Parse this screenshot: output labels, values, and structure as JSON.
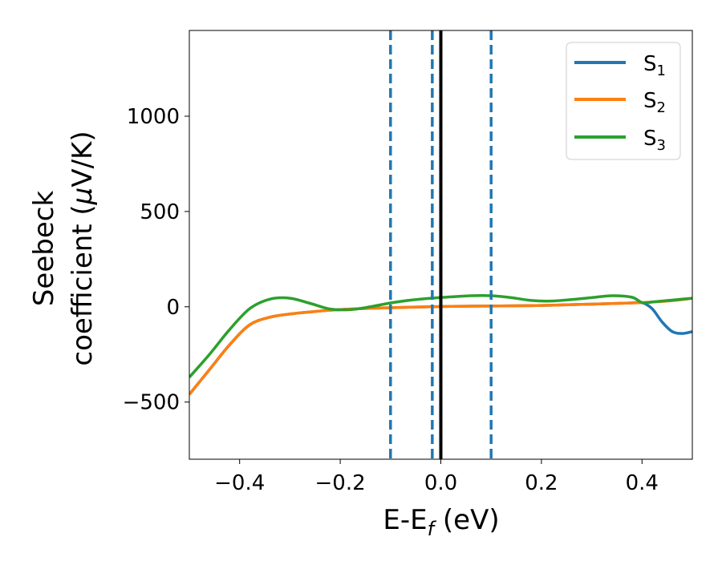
{
  "chart_data": {
    "type": "line",
    "title": "",
    "xlabel": "E-E",
    "xlabel_sub": "f",
    "xlabel_unit": " (eV)",
    "ylabel_line1": "Seebeck",
    "ylabel_line2": "coefficient  (",
    "ylabel_mu": "μ",
    "ylabel_unit": "V/K)",
    "xlim": [
      -0.5,
      0.5
    ],
    "ylim": [
      -800,
      1450
    ],
    "x_ticks": [
      -0.4,
      -0.2,
      0.0,
      0.2,
      0.4
    ],
    "x_tick_labels": [
      "−0.4",
      "−0.2",
      "0.0",
      "0.2",
      "0.4"
    ],
    "y_ticks": [
      -500,
      0,
      500,
      1000
    ],
    "y_tick_labels": [
      "−500",
      "0",
      "500",
      "1000"
    ],
    "grid": false,
    "legend_position": "top-right",
    "x": [
      -0.5,
      -0.46,
      -0.42,
      -0.38,
      -0.34,
      -0.3,
      -0.26,
      -0.22,
      -0.18,
      -0.14,
      -0.1,
      -0.06,
      -0.02,
      0.02,
      0.06,
      0.1,
      0.14,
      0.18,
      0.22,
      0.26,
      0.3,
      0.34,
      0.38,
      0.4,
      0.42,
      0.44,
      0.46,
      0.48,
      0.5
    ],
    "series": [
      {
        "name": "S",
        "subscript": "1",
        "color": "#1f77b4",
        "values": [
          -460,
          -330,
          -200,
          -95,
          -55,
          -38,
          -27,
          -18,
          -12,
          -8,
          -5,
          -2,
          0,
          2,
          3,
          4,
          5,
          6,
          8,
          11,
          14,
          17,
          20,
          22,
          -10,
          -80,
          -130,
          -140,
          -130
        ]
      },
      {
        "name": "S",
        "subscript": "2",
        "color": "#ff7f0e",
        "values": [
          -460,
          -330,
          -200,
          -95,
          -55,
          -38,
          -27,
          -18,
          -12,
          -8,
          -5,
          -2,
          0,
          2,
          3,
          4,
          5,
          6,
          8,
          11,
          14,
          17,
          20,
          22,
          25,
          28,
          32,
          38,
          45
        ]
      },
      {
        "name": "S",
        "subscript": "3",
        "color": "#2ca02c",
        "values": [
          -370,
          -250,
          -120,
          -10,
          40,
          45,
          18,
          -12,
          -15,
          0,
          20,
          35,
          45,
          52,
          58,
          58,
          48,
          33,
          30,
          38,
          48,
          58,
          50,
          22,
          25,
          30,
          35,
          40,
          45
        ]
      }
    ],
    "vlines": [
      {
        "x": -0.1,
        "style": "dashed",
        "color": "#1f77b4"
      },
      {
        "x": -0.017,
        "style": "dashed",
        "color": "#1f77b4"
      },
      {
        "x": 0.0,
        "style": "solid",
        "color": "#000000"
      },
      {
        "x": 0.1,
        "style": "dashed",
        "color": "#1f77b4"
      }
    ]
  }
}
